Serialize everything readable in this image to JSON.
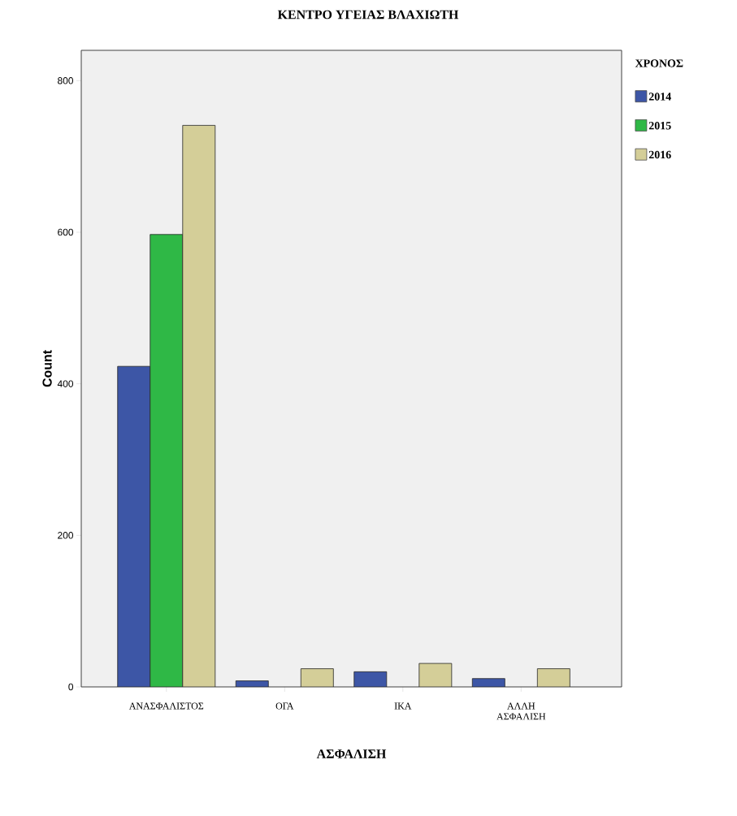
{
  "chart_data": {
    "type": "bar",
    "title": "ΚΕΝΤΡΟ ΥΓΕΙΑΣ   ΒΛΑΧΙΩΤΗ",
    "xlabel": "ΑΣΦΑΛΙΣΗ",
    "ylabel": "Count",
    "legend_title": "ΧΡΟΝΟΣ",
    "categories": [
      "ΑΝΑΣΦΑΛΙΣΤΟΣ",
      "ΟΓΑ",
      "ΙΚΑ",
      "ΑΛΛΗ ΑΣΦΑΛΙΣΗ"
    ],
    "series": [
      {
        "name": "2014",
        "color": "#3d56a6",
        "values": [
          423,
          8,
          20,
          11
        ]
      },
      {
        "name": "2015",
        "color": "#2fb846",
        "values": [
          597,
          null,
          null,
          null
        ]
      },
      {
        "name": "2016",
        "color": "#d4ce98",
        "values": [
          741,
          24,
          31,
          24
        ]
      }
    ],
    "ylim": [
      0,
      840
    ],
    "yticks": [
      0,
      200,
      400,
      600,
      800
    ],
    "grid": false,
    "legend": "top right"
  }
}
